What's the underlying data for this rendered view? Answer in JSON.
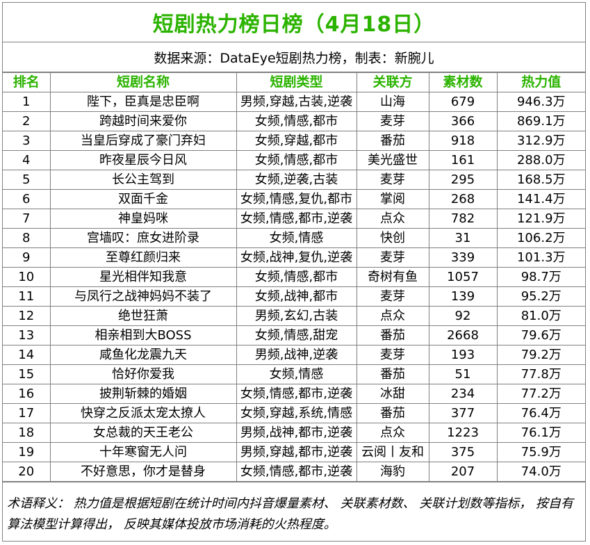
{
  "colors": {
    "accent_green": "#2bb300",
    "border": "#7f7f7f",
    "text": "#000000"
  },
  "title": "短剧热力榜日榜（4月18日）",
  "source": "数据来源：DataEye短剧热力榜，制表：新腕儿",
  "table": {
    "headers": [
      "排名",
      "短剧名称",
      "短剧类型",
      "关联方",
      "素材数",
      "热力值"
    ],
    "rows": [
      [
        "1",
        "陛下，臣真是忠臣啊",
        "男频,穿越,古装,逆袭",
        "山海",
        "679",
        "946.3万"
      ],
      [
        "2",
        "跨越时间来爱你",
        "女频,情感,都市",
        "麦芽",
        "366",
        "869.1万"
      ],
      [
        "3",
        "当皇后穿成了豪门弃妇",
        "女频,穿越,都市",
        "番茄",
        "918",
        "312.9万"
      ],
      [
        "4",
        "昨夜星辰今日风",
        "女频,情感,都市",
        "美光盛世",
        "161",
        "288.0万"
      ],
      [
        "5",
        "长公主驾到",
        "女频,逆袭,古装",
        "麦芽",
        "295",
        "168.5万"
      ],
      [
        "6",
        "双面千金",
        "女频,情感,复仇,都市",
        "掌阅",
        "268",
        "141.4万"
      ],
      [
        "7",
        "神皇妈咪",
        "女频,情感,都市,逆袭",
        "点众",
        "782",
        "121.9万"
      ],
      [
        "8",
        "宫墙叹：庶女进阶录",
        "女频,情感",
        "快创",
        "31",
        "106.2万"
      ],
      [
        "9",
        "至尊红颜归来",
        "女频,战神,复仇,逆袭",
        "麦芽",
        "339",
        "101.3万"
      ],
      [
        "10",
        "星光相伴知我意",
        "女频,情感,都市",
        "奇树有鱼",
        "1057",
        "98.7万"
      ],
      [
        "11",
        "与凤行之战神妈妈不装了",
        "女频,战神,都市",
        "麦芽",
        "139",
        "95.2万"
      ],
      [
        "12",
        "绝世狂萧",
        "男频,玄幻,古装",
        "点众",
        "92",
        "81.0万"
      ],
      [
        "13",
        "相亲相到大BOSS",
        "女频,情感,甜宠",
        "番茄",
        "2668",
        "79.6万"
      ],
      [
        "14",
        "咸鱼化龙震九天",
        "男频,战神,逆袭",
        "麦芽",
        "193",
        "79.2万"
      ],
      [
        "15",
        "恰好你爱我",
        "女频,情感",
        "番茄",
        "51",
        "77.8万"
      ],
      [
        "16",
        "披荆斩棘的婚姻",
        "女频,情感,都市,逆袭",
        "冰甜",
        "234",
        "77.2万"
      ],
      [
        "17",
        "快穿之反派太宠太撩人",
        "女频,穿越,系统,情感",
        "番茄",
        "377",
        "76.4万"
      ],
      [
        "18",
        "女总裁的天王老公",
        "男频,战神,都市,逆袭",
        "点众",
        "1223",
        "76.1万"
      ],
      [
        "19",
        "十年寒窗无人问",
        "男频,穿越,都市,逆袭",
        "云阅丨友和",
        "375",
        "75.9万"
      ],
      [
        "20",
        "不好意思，你才是替身",
        "女频,情感,都市,逆袭",
        "海豹",
        "207",
        "74.0万"
      ]
    ]
  },
  "note": "术语释义：  热力值是根据短剧在统计时间内抖音爆量素材、 关联素材数、 关联计划数等指标，  按自有算法模型计算得出，  反映其媒体投放市场消耗的火热程度。"
}
